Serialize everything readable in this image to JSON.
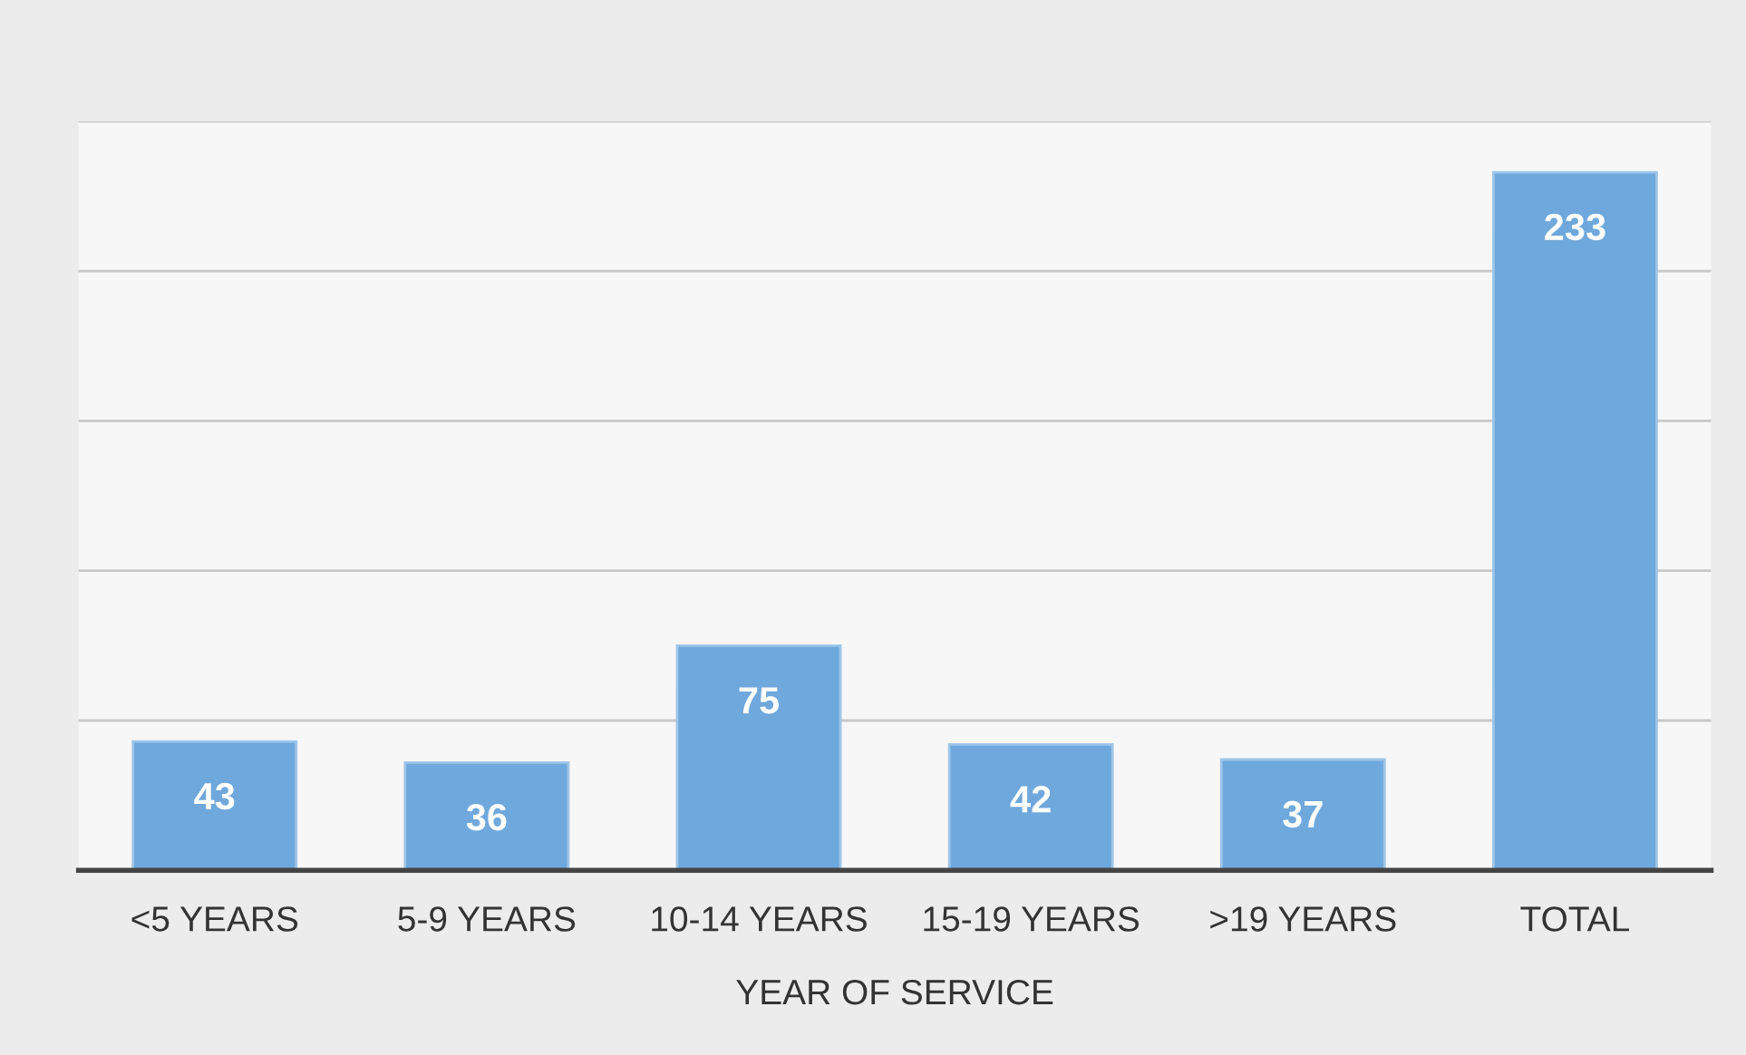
{
  "chart_data": {
    "type": "bar",
    "xlabel": "YEAR OF SERVICE",
    "categories": [
      "<5 YEARS",
      "5-9 YEARS",
      "10-14 YEARS",
      "15-19 YEARS",
      ">19 YEARS",
      "TOTAL"
    ],
    "values": [
      43,
      36,
      75,
      42,
      37,
      233
    ],
    "color": "#6fa8dc",
    "ylim": [
      0,
      250
    ],
    "yticks": [
      {
        "value": 0,
        "label": null
      },
      {
        "value": 50,
        "label": null
      },
      {
        "value": 100,
        "label": null
      },
      {
        "value": 150,
        "label": null
      },
      {
        "value": 200,
        "label": null
      },
      {
        "value": 250,
        "label": null
      }
    ],
    "grid": "y",
    "tick_labels": "x",
    "data_labels": true
  }
}
